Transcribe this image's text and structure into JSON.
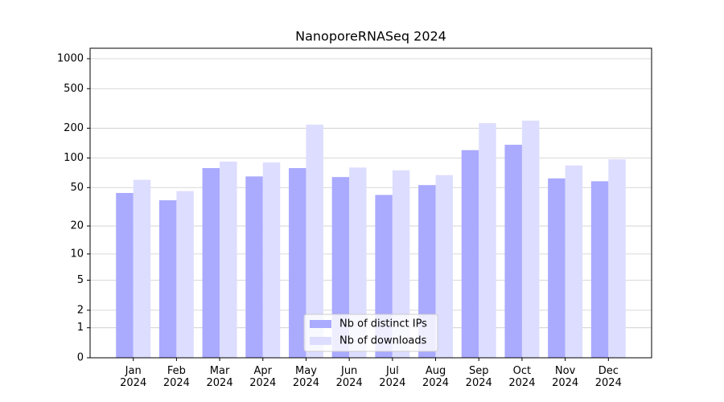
{
  "chart_data": {
    "type": "bar",
    "title": "NanoporeRNASeq 2024",
    "categories": [
      [
        "Jan",
        "2024"
      ],
      [
        "Feb",
        "2024"
      ],
      [
        "Mar",
        "2024"
      ],
      [
        "Apr",
        "2024"
      ],
      [
        "May",
        "2024"
      ],
      [
        "Jun",
        "2024"
      ],
      [
        "Jul",
        "2024"
      ],
      [
        "Aug",
        "2024"
      ],
      [
        "Sep",
        "2024"
      ],
      [
        "Oct",
        "2024"
      ],
      [
        "Nov",
        "2024"
      ],
      [
        "Dec",
        "2024"
      ]
    ],
    "series": [
      {
        "name": "Nb of distinct IPs",
        "color": "#aaaaff",
        "values": [
          44,
          37,
          79,
          65,
          79,
          64,
          42,
          53,
          120,
          136,
          62,
          58
        ]
      },
      {
        "name": "Nb of downloads",
        "color": "#ddddff",
        "values": [
          60,
          46,
          92,
          90,
          217,
          80,
          75,
          67,
          225,
          238,
          84,
          97
        ]
      }
    ],
    "yscale": "log1p",
    "ylim": [
      0,
      1273
    ],
    "yticks": [
      0,
      1,
      2,
      5,
      10,
      20,
      50,
      100,
      200,
      500,
      1000
    ],
    "grid": true,
    "legend": "lower center"
  }
}
